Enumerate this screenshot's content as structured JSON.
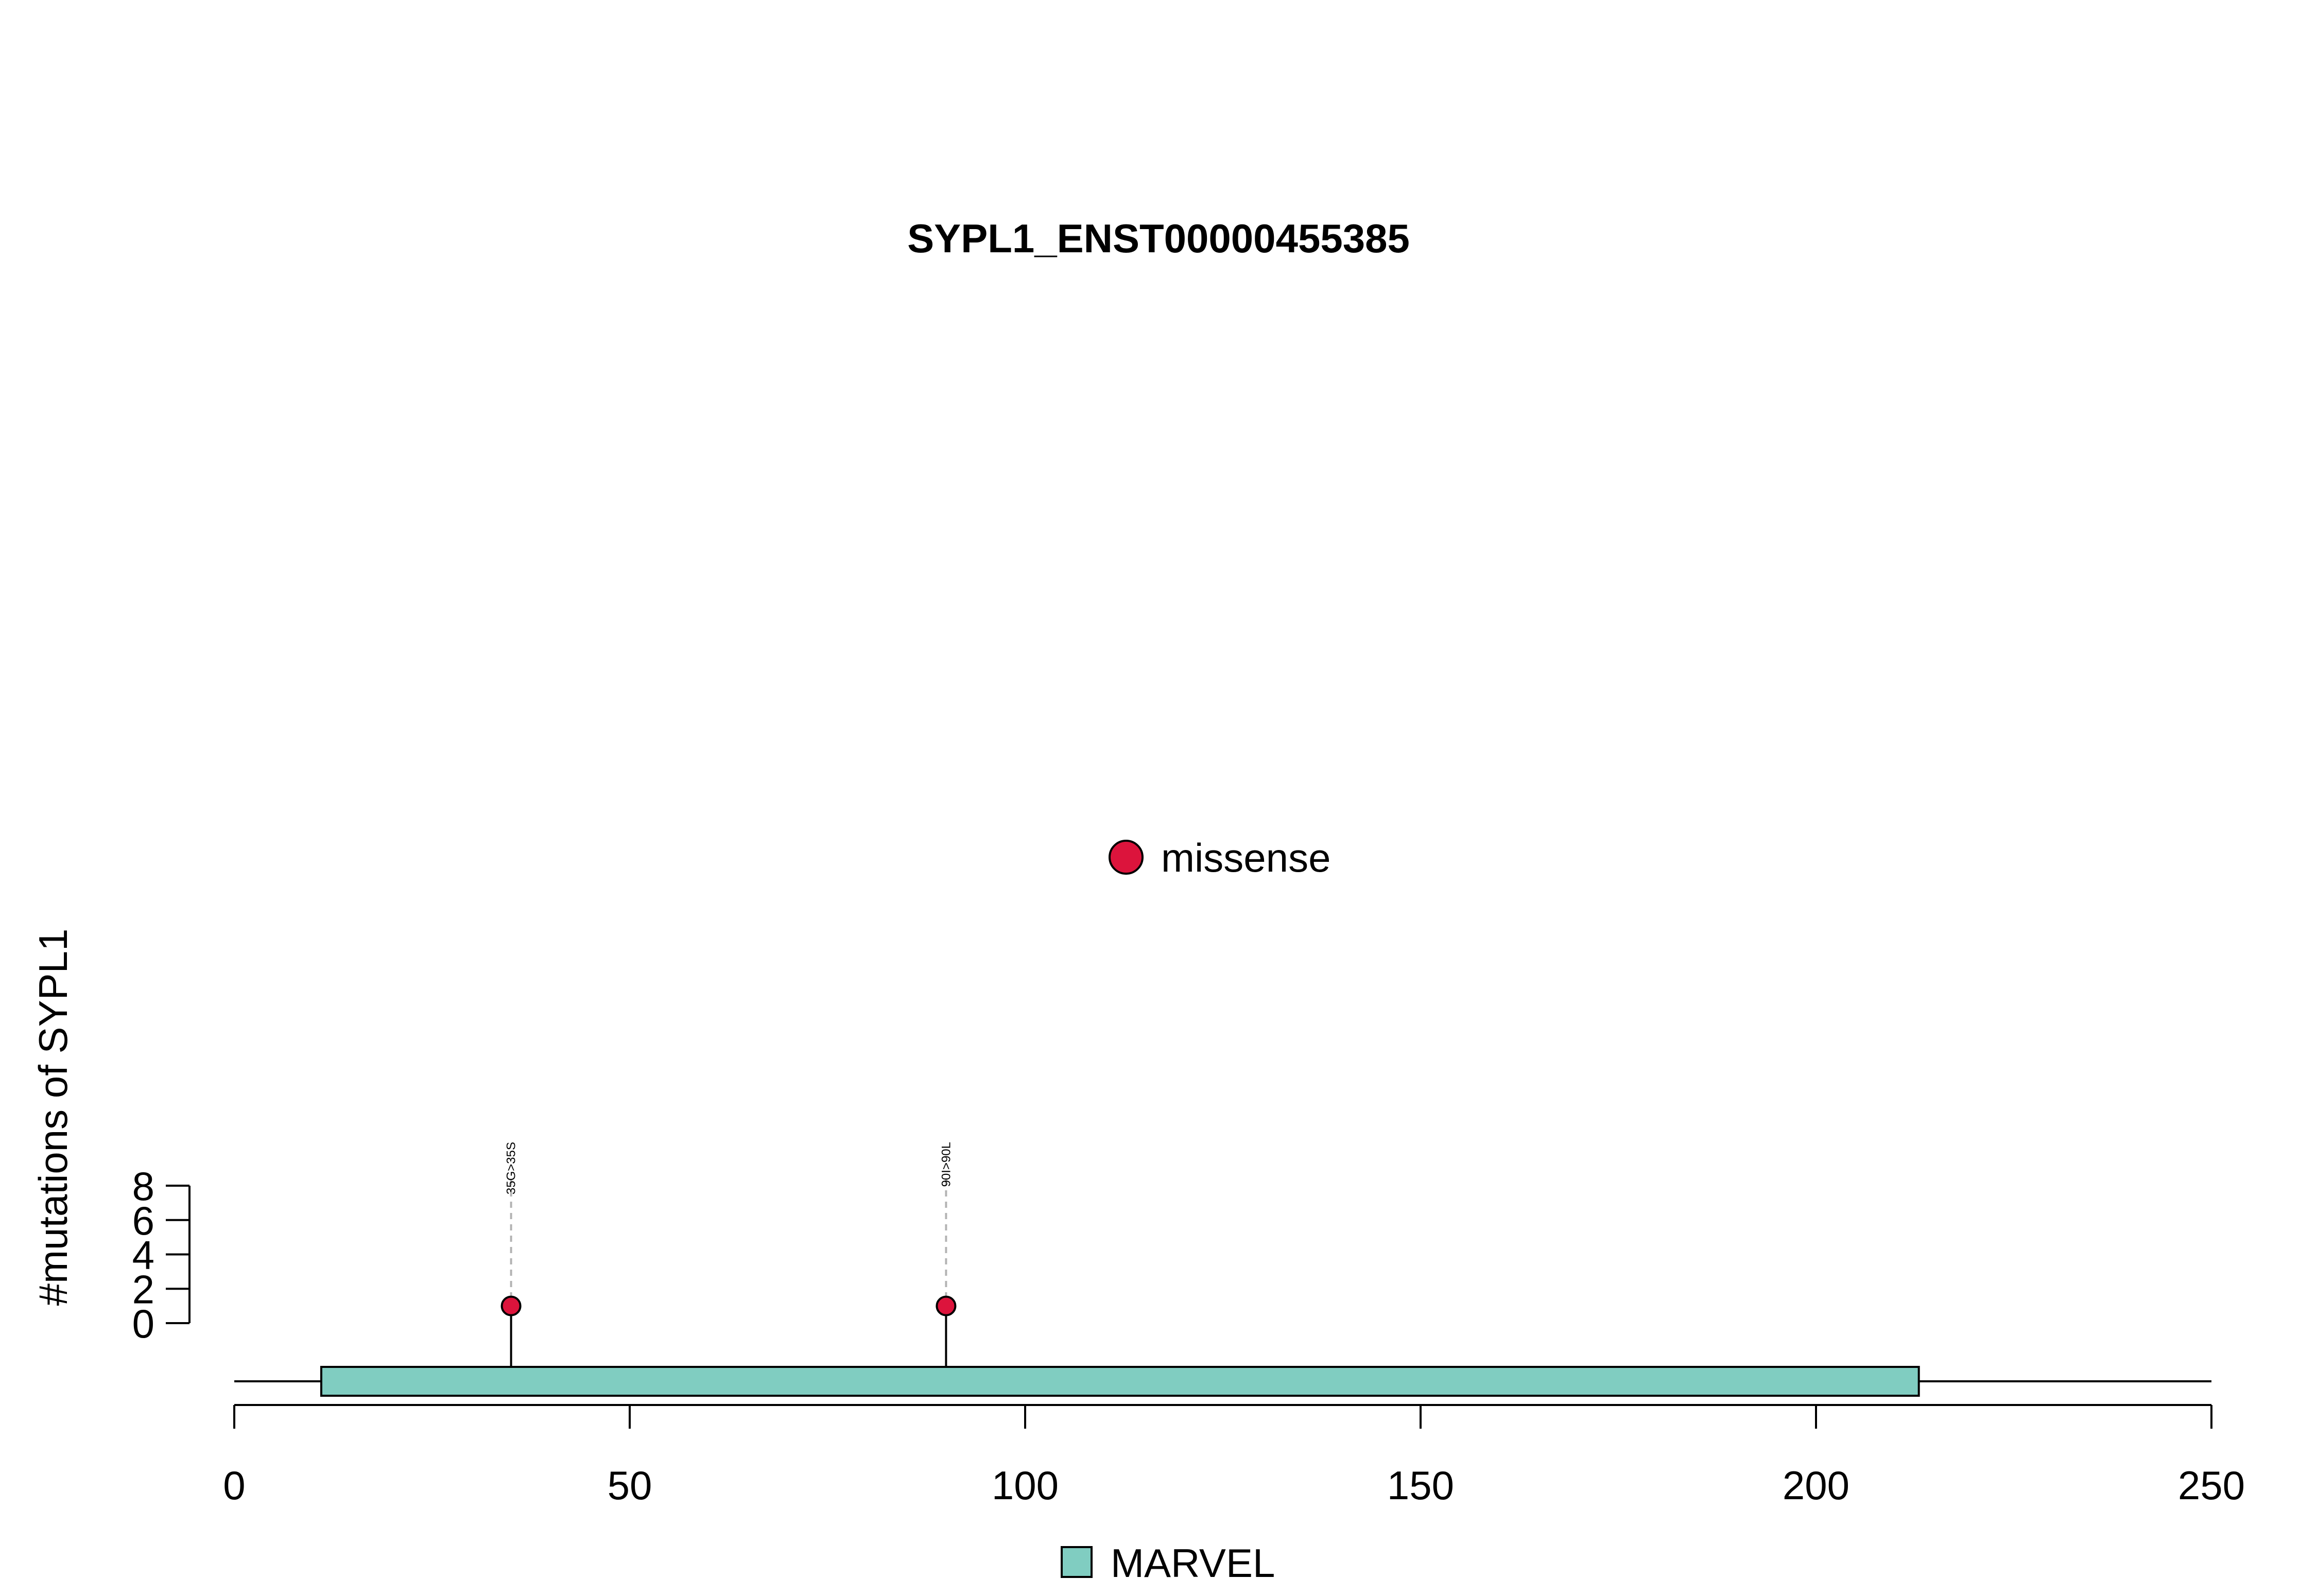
{
  "chart_data": {
    "type": "lollipop",
    "title": "SYPL1_ENST00000455385",
    "ylabel": "#mutations of SYPL1",
    "xlabel": "",
    "xlim": [
      0,
      250
    ],
    "x_ticks": [
      0,
      50,
      100,
      150,
      200,
      250
    ],
    "x_tick_labels": [
      "0",
      "50",
      "100",
      "150",
      "200",
      "250"
    ],
    "ylim": [
      0,
      8
    ],
    "y_ticks": [
      0,
      2,
      4,
      6,
      8
    ],
    "y_tick_labels": [
      "0",
      "2",
      "4",
      "6",
      "8"
    ],
    "protein_length": 250,
    "domains": [
      {
        "name": "MARVEL",
        "start": 11,
        "end": 213,
        "color": "#80CDC1"
      }
    ],
    "mutations": [
      {
        "position": 35,
        "count": 1,
        "label": "35G>35S",
        "type": "missense"
      },
      {
        "position": 90,
        "count": 1,
        "label": "90I>90L",
        "type": "missense"
      }
    ],
    "mutation_legend": [
      {
        "type": "missense",
        "label": "missense",
        "color": "#DC143C"
      }
    ],
    "domain_legend": [
      {
        "name": "MARVEL",
        "label": "MARVEL",
        "color": "#80CDC1"
      }
    ]
  }
}
